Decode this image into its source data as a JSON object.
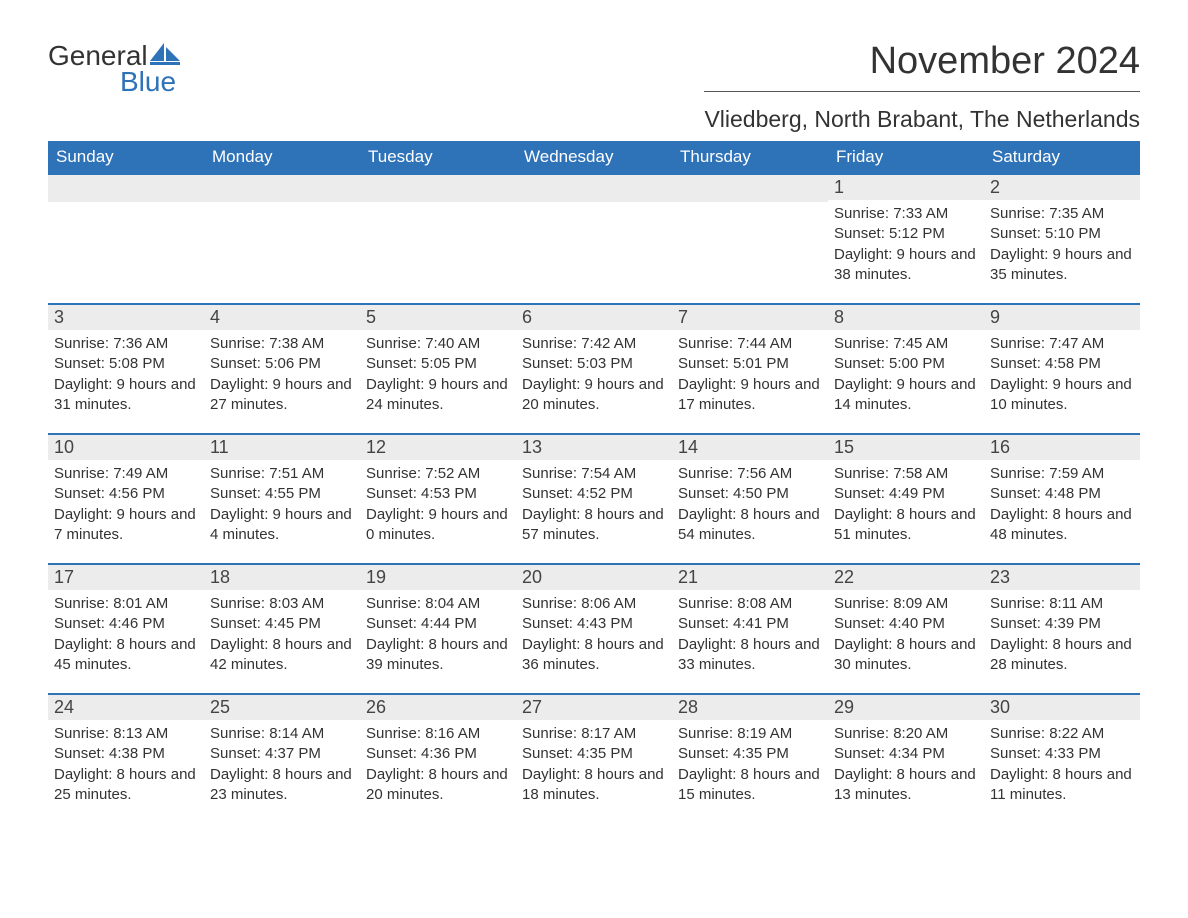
{
  "logo": {
    "text1": "General",
    "text2": "Blue",
    "icon_color": "#2e72b8"
  },
  "title": "November 2024",
  "subtitle": "Vliedberg, North Brabant, The Netherlands",
  "colors": {
    "header_bg": "#2e72b8",
    "header_fg": "#ffffff",
    "row_border": "#2e72b8",
    "daynum_bg": "#ececec",
    "text": "#333333",
    "page_bg": "#ffffff"
  },
  "weekdays": [
    "Sunday",
    "Monday",
    "Tuesday",
    "Wednesday",
    "Thursday",
    "Friday",
    "Saturday"
  ],
  "weeks": [
    [
      null,
      null,
      null,
      null,
      null,
      {
        "n": "1",
        "sunrise": "Sunrise: 7:33 AM",
        "sunset": "Sunset: 5:12 PM",
        "daylight": "Daylight: 9 hours and 38 minutes."
      },
      {
        "n": "2",
        "sunrise": "Sunrise: 7:35 AM",
        "sunset": "Sunset: 5:10 PM",
        "daylight": "Daylight: 9 hours and 35 minutes."
      }
    ],
    [
      {
        "n": "3",
        "sunrise": "Sunrise: 7:36 AM",
        "sunset": "Sunset: 5:08 PM",
        "daylight": "Daylight: 9 hours and 31 minutes."
      },
      {
        "n": "4",
        "sunrise": "Sunrise: 7:38 AM",
        "sunset": "Sunset: 5:06 PM",
        "daylight": "Daylight: 9 hours and 27 minutes."
      },
      {
        "n": "5",
        "sunrise": "Sunrise: 7:40 AM",
        "sunset": "Sunset: 5:05 PM",
        "daylight": "Daylight: 9 hours and 24 minutes."
      },
      {
        "n": "6",
        "sunrise": "Sunrise: 7:42 AM",
        "sunset": "Sunset: 5:03 PM",
        "daylight": "Daylight: 9 hours and 20 minutes."
      },
      {
        "n": "7",
        "sunrise": "Sunrise: 7:44 AM",
        "sunset": "Sunset: 5:01 PM",
        "daylight": "Daylight: 9 hours and 17 minutes."
      },
      {
        "n": "8",
        "sunrise": "Sunrise: 7:45 AM",
        "sunset": "Sunset: 5:00 PM",
        "daylight": "Daylight: 9 hours and 14 minutes."
      },
      {
        "n": "9",
        "sunrise": "Sunrise: 7:47 AM",
        "sunset": "Sunset: 4:58 PM",
        "daylight": "Daylight: 9 hours and 10 minutes."
      }
    ],
    [
      {
        "n": "10",
        "sunrise": "Sunrise: 7:49 AM",
        "sunset": "Sunset: 4:56 PM",
        "daylight": "Daylight: 9 hours and 7 minutes."
      },
      {
        "n": "11",
        "sunrise": "Sunrise: 7:51 AM",
        "sunset": "Sunset: 4:55 PM",
        "daylight": "Daylight: 9 hours and 4 minutes."
      },
      {
        "n": "12",
        "sunrise": "Sunrise: 7:52 AM",
        "sunset": "Sunset: 4:53 PM",
        "daylight": "Daylight: 9 hours and 0 minutes."
      },
      {
        "n": "13",
        "sunrise": "Sunrise: 7:54 AM",
        "sunset": "Sunset: 4:52 PM",
        "daylight": "Daylight: 8 hours and 57 minutes."
      },
      {
        "n": "14",
        "sunrise": "Sunrise: 7:56 AM",
        "sunset": "Sunset: 4:50 PM",
        "daylight": "Daylight: 8 hours and 54 minutes."
      },
      {
        "n": "15",
        "sunrise": "Sunrise: 7:58 AM",
        "sunset": "Sunset: 4:49 PM",
        "daylight": "Daylight: 8 hours and 51 minutes."
      },
      {
        "n": "16",
        "sunrise": "Sunrise: 7:59 AM",
        "sunset": "Sunset: 4:48 PM",
        "daylight": "Daylight: 8 hours and 48 minutes."
      }
    ],
    [
      {
        "n": "17",
        "sunrise": "Sunrise: 8:01 AM",
        "sunset": "Sunset: 4:46 PM",
        "daylight": "Daylight: 8 hours and 45 minutes."
      },
      {
        "n": "18",
        "sunrise": "Sunrise: 8:03 AM",
        "sunset": "Sunset: 4:45 PM",
        "daylight": "Daylight: 8 hours and 42 minutes."
      },
      {
        "n": "19",
        "sunrise": "Sunrise: 8:04 AM",
        "sunset": "Sunset: 4:44 PM",
        "daylight": "Daylight: 8 hours and 39 minutes."
      },
      {
        "n": "20",
        "sunrise": "Sunrise: 8:06 AM",
        "sunset": "Sunset: 4:43 PM",
        "daylight": "Daylight: 8 hours and 36 minutes."
      },
      {
        "n": "21",
        "sunrise": "Sunrise: 8:08 AM",
        "sunset": "Sunset: 4:41 PM",
        "daylight": "Daylight: 8 hours and 33 minutes."
      },
      {
        "n": "22",
        "sunrise": "Sunrise: 8:09 AM",
        "sunset": "Sunset: 4:40 PM",
        "daylight": "Daylight: 8 hours and 30 minutes."
      },
      {
        "n": "23",
        "sunrise": "Sunrise: 8:11 AM",
        "sunset": "Sunset: 4:39 PM",
        "daylight": "Daylight: 8 hours and 28 minutes."
      }
    ],
    [
      {
        "n": "24",
        "sunrise": "Sunrise: 8:13 AM",
        "sunset": "Sunset: 4:38 PM",
        "daylight": "Daylight: 8 hours and 25 minutes."
      },
      {
        "n": "25",
        "sunrise": "Sunrise: 8:14 AM",
        "sunset": "Sunset: 4:37 PM",
        "daylight": "Daylight: 8 hours and 23 minutes."
      },
      {
        "n": "26",
        "sunrise": "Sunrise: 8:16 AM",
        "sunset": "Sunset: 4:36 PM",
        "daylight": "Daylight: 8 hours and 20 minutes."
      },
      {
        "n": "27",
        "sunrise": "Sunrise: 8:17 AM",
        "sunset": "Sunset: 4:35 PM",
        "daylight": "Daylight: 8 hours and 18 minutes."
      },
      {
        "n": "28",
        "sunrise": "Sunrise: 8:19 AM",
        "sunset": "Sunset: 4:35 PM",
        "daylight": "Daylight: 8 hours and 15 minutes."
      },
      {
        "n": "29",
        "sunrise": "Sunrise: 8:20 AM",
        "sunset": "Sunset: 4:34 PM",
        "daylight": "Daylight: 8 hours and 13 minutes."
      },
      {
        "n": "30",
        "sunrise": "Sunrise: 8:22 AM",
        "sunset": "Sunset: 4:33 PM",
        "daylight": "Daylight: 8 hours and 11 minutes."
      }
    ]
  ]
}
